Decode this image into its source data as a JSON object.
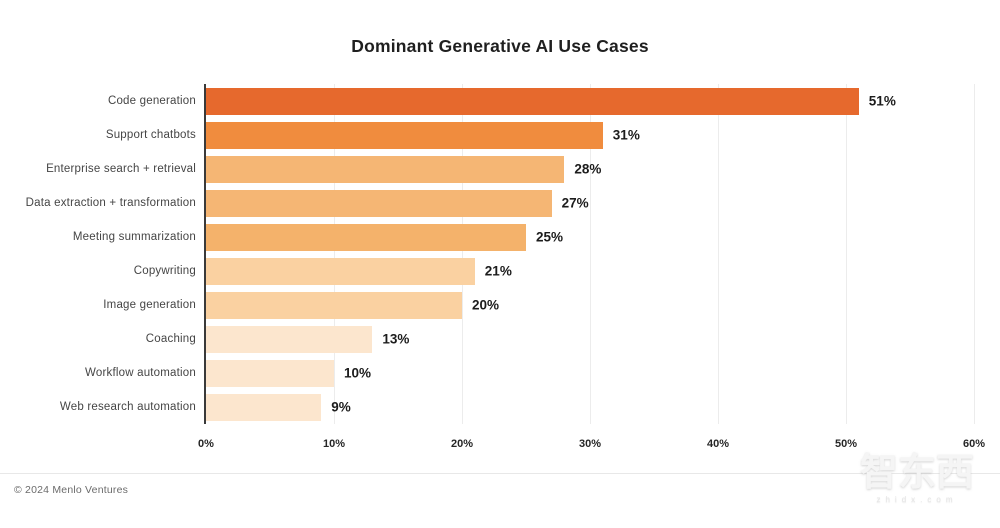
{
  "title": "Dominant Generative AI Use Cases",
  "footer": {
    "copyright": "© 2024 Menlo Ventures"
  },
  "watermark": {
    "logo": "智东西",
    "domain": "zhidx.com"
  },
  "colors": {
    "axis_line": "#3a3a3a",
    "gridline": "#ececec",
    "category_label": "#454545",
    "value_label": "#1c1c1c",
    "tick_label": "#262626"
  },
  "chart_data": {
    "type": "bar",
    "orientation": "horizontal",
    "title": "Dominant Generative AI Use Cases",
    "categories": [
      "Code generation",
      "Support chatbots",
      "Enterprise search + retrieval",
      "Data extraction + transformation",
      "Meeting summarization",
      "Copywriting",
      "Image generation",
      "Coaching",
      "Workflow automation",
      "Web research automation"
    ],
    "values": [
      51,
      31,
      28,
      27,
      25,
      21,
      20,
      13,
      10,
      9
    ],
    "value_labels": [
      "51%",
      "31%",
      "28%",
      "27%",
      "25%",
      "21%",
      "20%",
      "13%",
      "10%",
      "9%"
    ],
    "bar_colors": [
      "#E6692D",
      "#F08C3E",
      "#F5B674",
      "#F5B674",
      "#F4B26B",
      "#FAD1A1",
      "#FAD1A1",
      "#FCE6CE",
      "#FCE6CE",
      "#FCE6CE"
    ],
    "xlim": [
      0,
      60
    ],
    "x_ticks": [
      {
        "value": 0,
        "label": "0%"
      },
      {
        "value": 10,
        "label": "10%"
      },
      {
        "value": 20,
        "label": "20%"
      },
      {
        "value": 30,
        "label": "30%"
      },
      {
        "value": 40,
        "label": "40%"
      },
      {
        "value": 50,
        "label": "50%"
      },
      {
        "value": 60,
        "label": "60%"
      }
    ],
    "grid": "vertical-only",
    "legend": "none"
  }
}
